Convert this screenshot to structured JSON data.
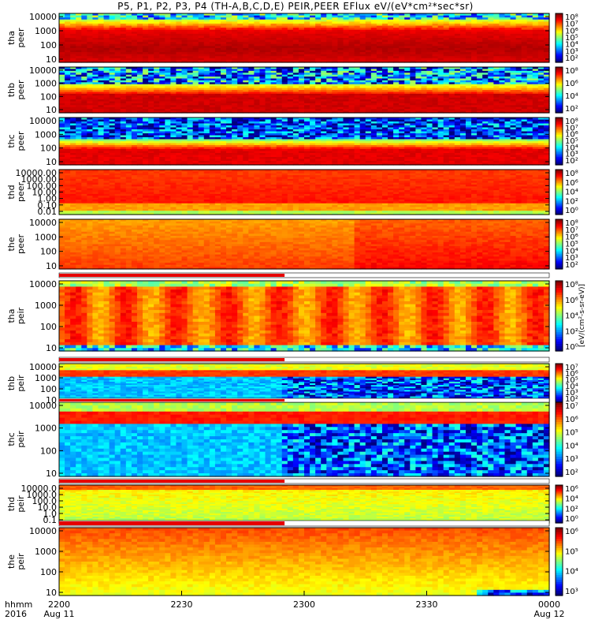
{
  "chart_data": {
    "type": "heatmap",
    "title": "P5, P1, P2, P3, P4 (TH-A,B,C,D,E) PEIR,PEER EFlux eV/(eV*cm²*sec*sr)",
    "time_axis": {
      "label_line1": "hhmm",
      "label_line2": "2016",
      "ticks": [
        {
          "t": "2200",
          "date": "Aug 11"
        },
        {
          "t": "2230",
          "date": ""
        },
        {
          "t": "2300",
          "date": ""
        },
        {
          "t": "2330",
          "date": ""
        },
        {
          "t": "0000",
          "date": "Aug 12"
        }
      ]
    },
    "colorbar_label": "[eV/(cm²-s-sr-eV)]",
    "panels": [
      {
        "ylabel": [
          "tha",
          "peer"
        ],
        "yscale": "log",
        "yticks": [
          "10000",
          "1000",
          "100",
          "10"
        ],
        "cbar": [
          "10⁸",
          "10⁷",
          "10⁶",
          "10⁵",
          "10⁴",
          "10³",
          "10²"
        ],
        "field": "a-peer"
      },
      {
        "ylabel": [
          "thb",
          "peer"
        ],
        "yscale": "log",
        "yticks": [
          "10000",
          "1000",
          "100",
          "10"
        ],
        "cbar": [
          "10⁸",
          "10⁶",
          "10⁴",
          "10²"
        ],
        "field": "b-peer"
      },
      {
        "ylabel": [
          "thc",
          "peer"
        ],
        "yscale": "log",
        "yticks": [
          "10000",
          "1000",
          "100",
          "10"
        ],
        "cbar": [
          "10⁸",
          "10⁷",
          "10⁶",
          "10⁵",
          "10⁴",
          "10³",
          "10²"
        ],
        "field": "c-peer"
      },
      {
        "ylabel": [
          "thd",
          "peer"
        ],
        "yscale": "log",
        "yticks": [
          "10000.00",
          "1000.00",
          "100.00",
          "10.00",
          "1.00",
          "0.10",
          "0.01"
        ],
        "cbar": [
          "10⁸",
          "10⁶",
          "10⁴",
          "10²",
          "10⁰"
        ],
        "field": "d-peer"
      },
      {
        "ylabel": [
          "the",
          "peer"
        ],
        "yscale": "log",
        "yticks": [
          "10000",
          "1000",
          "100",
          "10"
        ],
        "cbar": [
          "10⁸",
          "10⁷",
          "10⁶",
          "10⁵",
          "10⁴",
          "10³",
          "10²"
        ],
        "field": "e-peer"
      },
      {
        "ylabel": [
          "tha",
          "peir"
        ],
        "yscale": "log",
        "yticks": [
          "10000",
          "1000",
          "100",
          "10"
        ],
        "cbar": [
          "10⁸",
          "10⁶",
          "10⁴",
          "10²",
          "10⁰"
        ],
        "field": "a-peir"
      },
      {
        "ylabel": [
          "thb",
          "peir"
        ],
        "yscale": "log",
        "yticks": [
          "10000",
          "1000",
          "100",
          "10"
        ],
        "cbar": [
          "10⁷",
          "10⁶",
          "10⁵",
          "10⁴",
          "10³",
          "10²"
        ],
        "field": "b-peir"
      },
      {
        "ylabel": [
          "thc",
          "peir"
        ],
        "yscale": "log",
        "yticks": [
          "10000",
          "1000",
          "100",
          "10"
        ],
        "cbar": [
          "10⁷",
          "10⁶",
          "10⁵",
          "10⁴",
          "10³",
          "10²"
        ],
        "field": "c-peir"
      },
      {
        "ylabel": [
          "thd",
          "peir"
        ],
        "yscale": "log",
        "yticks": [
          "10000.0",
          "1000.0",
          "100.0",
          "10.0",
          "1.0",
          "0.1"
        ],
        "cbar": [
          "10⁶",
          "10⁴",
          "10²",
          "10⁰"
        ],
        "field": "d-peir"
      },
      {
        "ylabel": [
          "the",
          "peir"
        ],
        "yscale": "log",
        "yticks": [
          "10000",
          "1000",
          "100",
          "10"
        ],
        "cbar": [
          "10⁶",
          "10⁵",
          "10⁴",
          "10³"
        ],
        "field": "e-peir"
      }
    ]
  }
}
